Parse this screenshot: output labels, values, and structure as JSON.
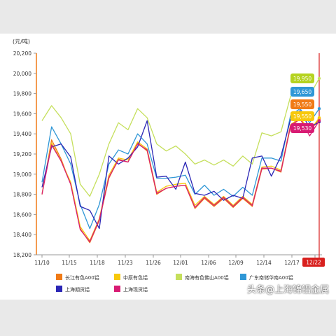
{
  "chart_data": {
    "type": "line",
    "title": "",
    "ylabel": "(元/吨)",
    "xlabel": "",
    "ylim": [
      18200,
      20200
    ],
    "yticks": [
      "18,200",
      "18,400",
      "18,600",
      "18,800",
      "19,000",
      "19,200",
      "19,400",
      "19,600",
      "19,800",
      "20,000",
      "20,200"
    ],
    "xticks": [
      "11/10",
      "11/15",
      "11/18",
      "11/23",
      "11/26",
      "12/01",
      "12/06",
      "12/09",
      "12/14",
      "12/17",
      "12/22"
    ],
    "highlight_date": "12/22",
    "grid": false,
    "legend_position": "bottom",
    "end_labels": [
      "19,950",
      "19,650",
      "19,550",
      "19,550",
      "19,530"
    ],
    "series": [
      {
        "name": "长江有色A00铝",
        "color": "#f07a16",
        "values": [
          18800,
          19340,
          19150,
          18900,
          18460,
          18320,
          18540,
          18960,
          19150,
          19120,
          19310,
          19230,
          18800,
          18860,
          18880,
          18890,
          18660,
          18760,
          18680,
          18760,
          18670,
          18760,
          18680,
          19050,
          19060,
          19020,
          19470,
          19550,
          19420,
          19550
        ]
      },
      {
        "name": "中原有色铝",
        "color": "#f7c80b",
        "values": [
          18800,
          19310,
          19130,
          18920,
          18480,
          18340,
          18560,
          18990,
          19160,
          19140,
          19320,
          19250,
          18820,
          18880,
          18900,
          18910,
          18690,
          18780,
          18700,
          18780,
          18690,
          18780,
          18700,
          19070,
          19080,
          19040,
          19490,
          19560,
          19430,
          19560
        ]
      },
      {
        "name": "南海有色佛山A00铝",
        "color": "#c5df5c",
        "values": [
          19530,
          19680,
          19560,
          19400,
          18900,
          18780,
          19000,
          19300,
          19510,
          19440,
          19650,
          19560,
          19300,
          19230,
          19280,
          19200,
          19100,
          19140,
          19090,
          19140,
          19080,
          19180,
          19100,
          19410,
          19380,
          19420,
          19770,
          19850,
          19780,
          19950
        ]
      },
      {
        "name": "广东南储华南A00铝",
        "color": "#2f97d6",
        "values": [
          18920,
          19470,
          19300,
          19100,
          18700,
          18460,
          18700,
          19100,
          19240,
          19200,
          19400,
          19300,
          18960,
          18960,
          18970,
          18990,
          18800,
          18890,
          18790,
          18850,
          18780,
          18870,
          18790,
          19160,
          19160,
          19130,
          19580,
          19650,
          19510,
          19650
        ]
      },
      {
        "name": "上海期货铝",
        "color": "#2b26b5",
        "values": [
          18870,
          19270,
          19300,
          19170,
          18680,
          18640,
          18460,
          19180,
          19100,
          19160,
          19270,
          19530,
          18970,
          18980,
          18850,
          19120,
          18810,
          18790,
          18830,
          18740,
          18790,
          18760,
          19160,
          19180,
          18980,
          19180,
          19540,
          19630,
          19460,
          19520
        ]
      },
      {
        "name": "上海现货铝",
        "color": "#d81b73",
        "values": [
          18800,
          19290,
          19130,
          18900,
          18450,
          18330,
          18550,
          18970,
          19140,
          19120,
          19300,
          19240,
          18810,
          18860,
          18880,
          18890,
          18670,
          18770,
          18690,
          18770,
          18680,
          18770,
          18690,
          19060,
          19060,
          19030,
          19480,
          19550,
          19380,
          19530
        ]
      }
    ]
  },
  "watermark": "头条@上海锦铝金属"
}
